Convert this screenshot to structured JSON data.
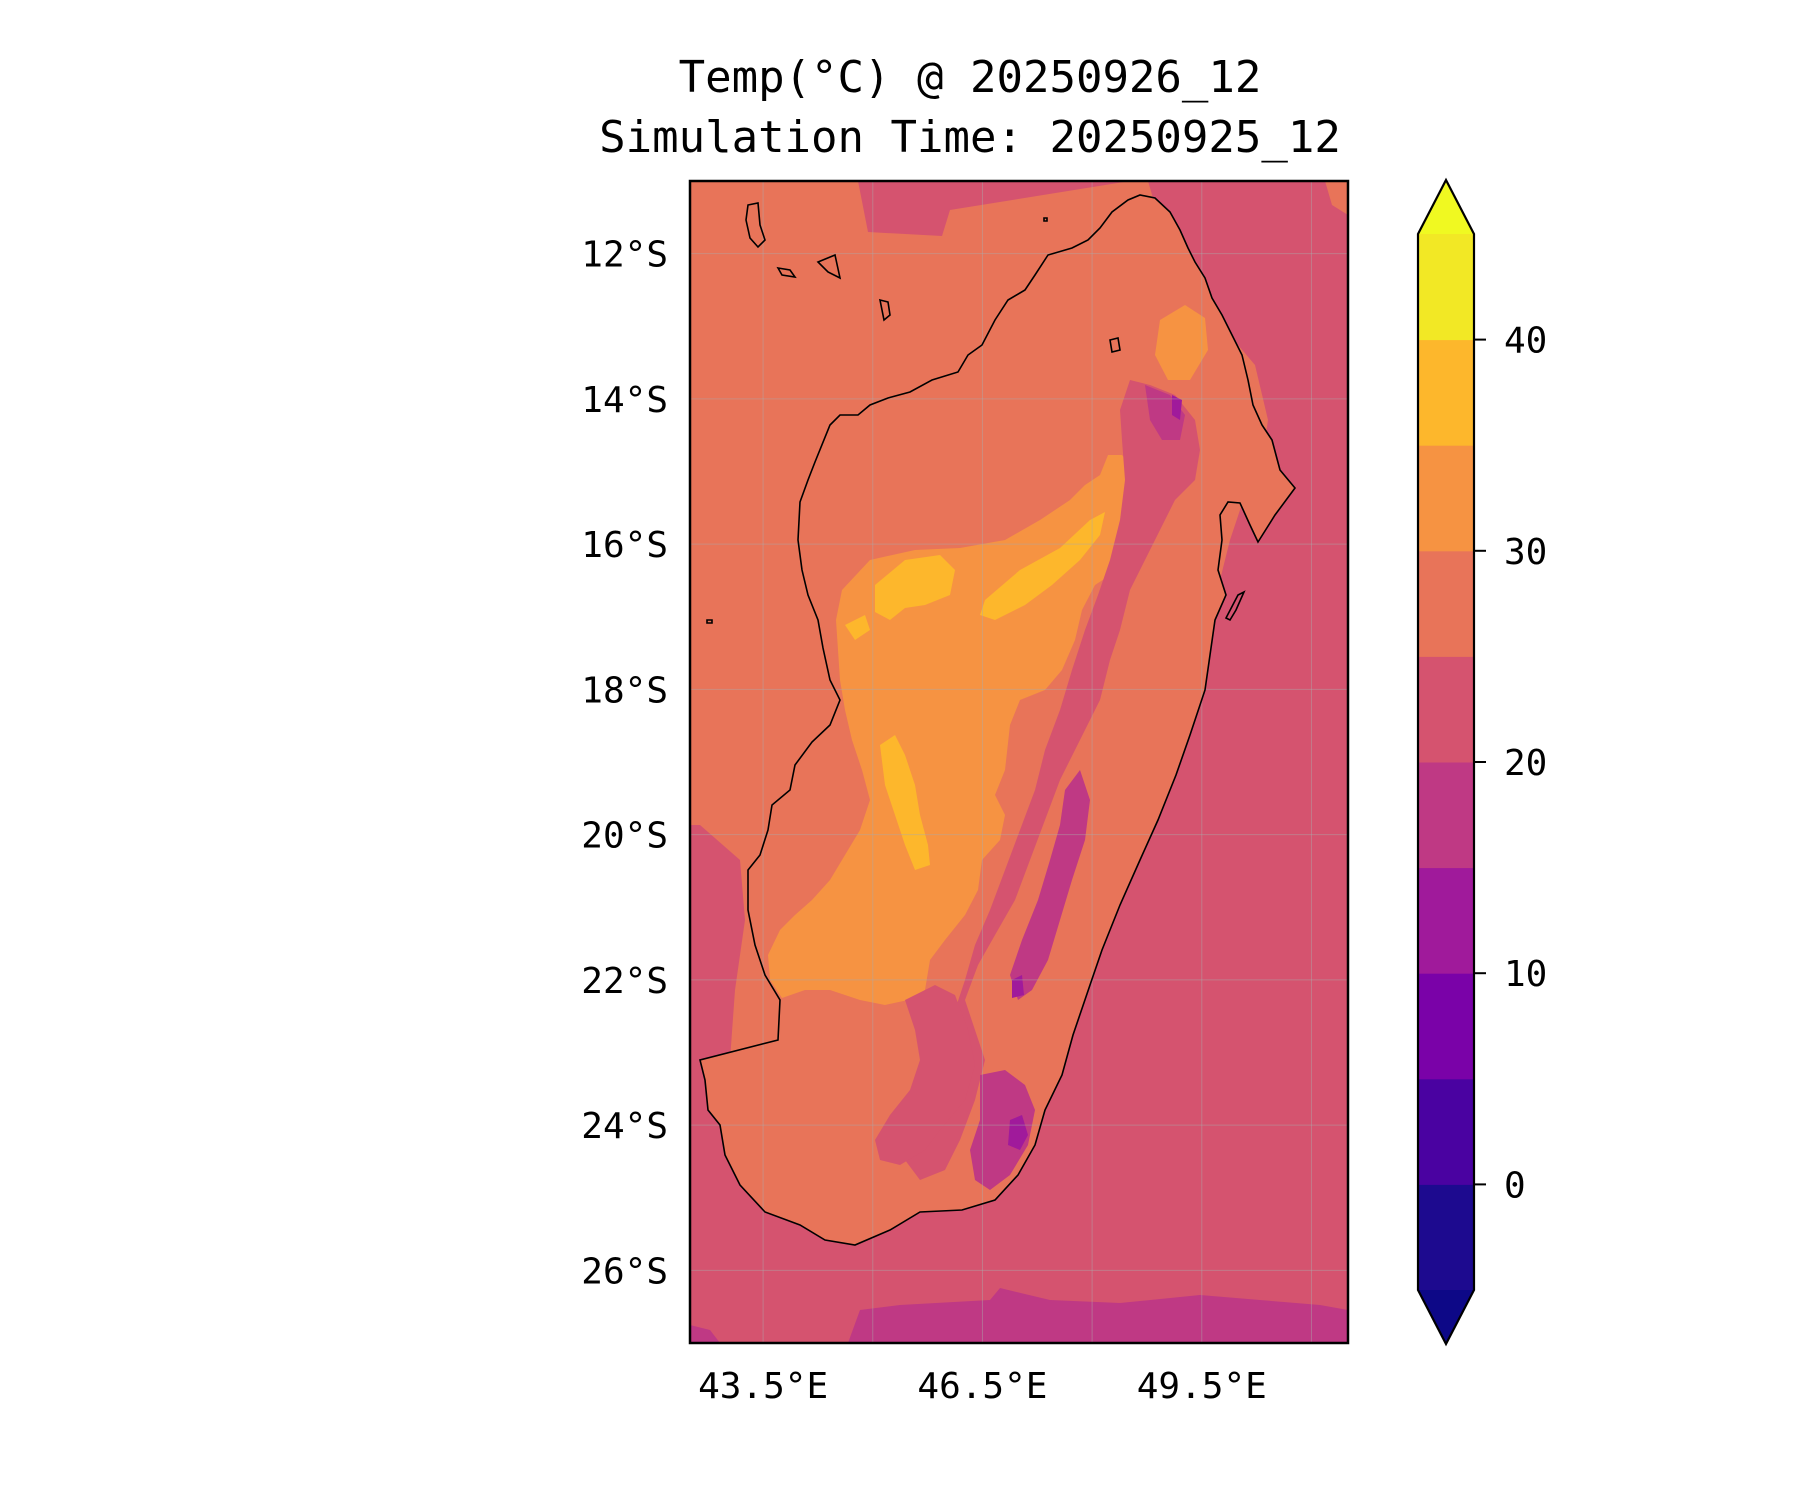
{
  "title": {
    "line1": "Temp(°C) @ 20250926_12",
    "line2": "Simulation Time: 20250925_12"
  },
  "map": {
    "region": "Madagascar",
    "lon_range": [
      42.5,
      51.5
    ],
    "lat_range": [
      -27.0,
      -11.0
    ],
    "lat_ticks": [
      {
        "value": -12,
        "label": "12°S"
      },
      {
        "value": -14,
        "label": "14°S"
      },
      {
        "value": -16,
        "label": "16°S"
      },
      {
        "value": -18,
        "label": "18°S"
      },
      {
        "value": -20,
        "label": "20°S"
      },
      {
        "value": -22,
        "label": "22°S"
      },
      {
        "value": -24,
        "label": "24°S"
      },
      {
        "value": -26,
        "label": "26°S"
      }
    ],
    "lon_ticks": [
      {
        "value": 43.5,
        "label": "43.5°E"
      },
      {
        "value": 46.5,
        "label": "46.5°E"
      },
      {
        "value": 49.5,
        "label": "49.5°E"
      }
    ],
    "gridlines": true,
    "ocean_background_range": [
      20,
      25
    ]
  },
  "colorbar": {
    "levels": [
      -5,
      0,
      5,
      10,
      15,
      20,
      25,
      30,
      35,
      40,
      45
    ],
    "colors": [
      "#1d0a8f",
      "#4a02a1",
      "#7a02a8",
      "#a01a9b",
      "#bf3984",
      "#d5536f",
      "#e87459",
      "#f69342",
      "#fdb72c",
      "#f2e825"
    ],
    "under_color": "#0d0887",
    "over_color": "#f0f921",
    "extend": "both",
    "tick_labels": [
      {
        "value": 0,
        "label": "0"
      },
      {
        "value": 10,
        "label": "10"
      },
      {
        "value": 20,
        "label": "20"
      },
      {
        "value": 30,
        "label": "30"
      },
      {
        "value": 40,
        "label": "40"
      }
    ]
  },
  "colors": {
    "ocean": "#d5536f",
    "coast_line": "#000000",
    "frame": "#000000"
  }
}
